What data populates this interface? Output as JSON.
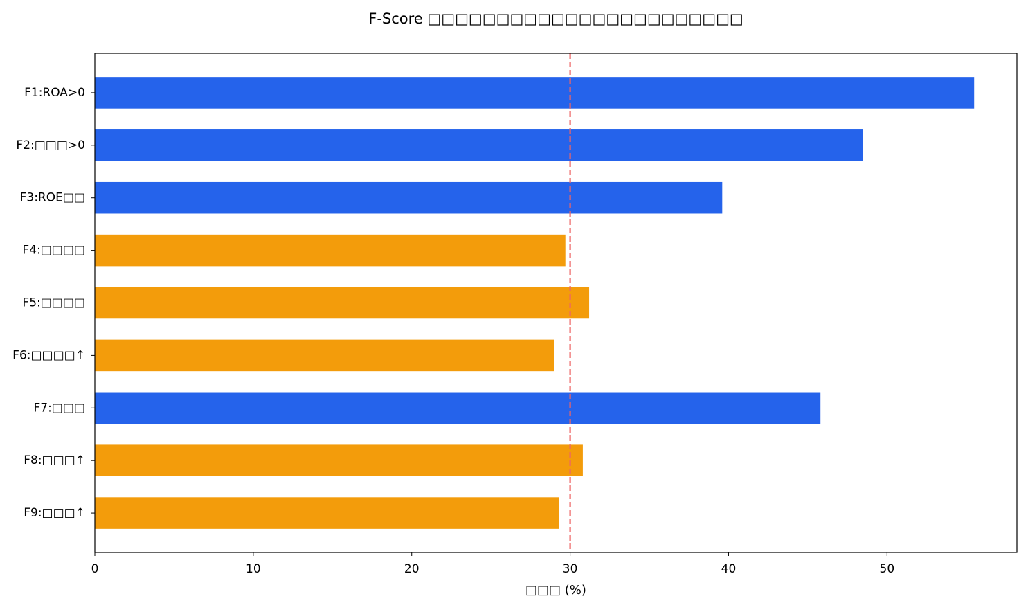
{
  "chart_data": {
    "type": "barh",
    "title": "F-Score □□□□□□□□□□□□□□□□□□□□□□□",
    "xlabel": "□□□ (%)",
    "categories": [
      "F1:ROA>0",
      "F2:□□□>0",
      "F3:ROE□□",
      "F4:□□□□",
      "F5:□□□□",
      "F6:□□□□↑",
      "F7:□□□",
      "F8:□□□↑",
      "F9:□□□↑"
    ],
    "values": [
      55.5,
      48.5,
      39.6,
      29.7,
      31.2,
      29.0,
      45.8,
      30.8,
      29.3
    ],
    "colors": [
      "#2563eb",
      "#2563eb",
      "#2563eb",
      "#f39c0b",
      "#f39c0b",
      "#f39c0b",
      "#2563eb",
      "#f39c0b",
      "#f39c0b"
    ],
    "xlim": [
      0,
      58.2
    ],
    "xticks": [
      0,
      10,
      20,
      30,
      40,
      50
    ],
    "reference_line": {
      "value": 30,
      "color": "#ee6666"
    }
  }
}
